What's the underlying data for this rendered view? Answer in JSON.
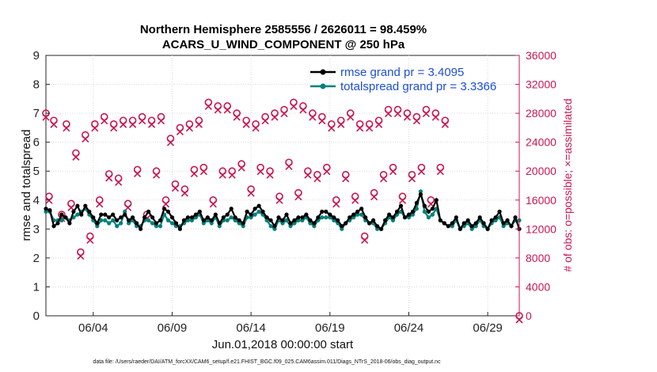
{
  "chart_data": {
    "type": "line",
    "title_line1": "Northern Hemisphere 2585556 / 2626011 = 98.459%",
    "title_line2": "ACARS_U_WIND_COMPONENT @ 250 hPa",
    "xlabel": "Jun.01,2018 00:00:00 start",
    "ylabel_left": "rmse and totalspread",
    "ylabel_right": "# of obs: o=possible; ×=assimilated",
    "xlim": [
      1,
      31
    ],
    "ylim_left": [
      0,
      9
    ],
    "ylim_right": [
      0,
      36000
    ],
    "x_ticks": [
      {
        "x": 4,
        "label": "06/04"
      },
      {
        "x": 9,
        "label": "06/09"
      },
      {
        "x": 14,
        "label": "06/14"
      },
      {
        "x": 19,
        "label": "06/19"
      },
      {
        "x": 24,
        "label": "06/24"
      },
      {
        "x": 29,
        "label": "06/29"
      }
    ],
    "y_ticks_left": [
      "0",
      "1",
      "2",
      "3",
      "4",
      "5",
      "6",
      "7",
      "8",
      "9"
    ],
    "y_ticks_right": [
      "0",
      "4000",
      "8000",
      "12000",
      "16000",
      "20000",
      "24000",
      "28000",
      "32000",
      "36000"
    ],
    "legend": {
      "rmse_label": "rmse grand pr = 3.4095",
      "spread_label": "totalspread grand pr = 3.3366"
    },
    "colors": {
      "rmse": "#000000",
      "spread": "#00807a",
      "obs": "#c8174f",
      "legend_text": "#1d4fd6"
    },
    "series": [
      {
        "name": "rmse",
        "values": [
          3.7,
          3.65,
          3.1,
          3.2,
          3.5,
          3.4,
          3.2,
          3.6,
          3.8,
          3.5,
          3.8,
          3.6,
          3.4,
          3.2,
          3.5,
          3.5,
          3.4,
          3.5,
          3.3,
          3.4,
          3.5,
          3.3,
          3.4,
          3.2,
          3.0,
          3.4,
          3.6,
          3.4,
          3.2,
          3.3,
          3.7,
          3.6,
          3.4,
          3.2,
          3.0,
          3.3,
          3.4,
          3.4,
          3.5,
          3.6,
          3.3,
          3.4,
          3.3,
          3.5,
          3.2,
          3.4,
          3.5,
          3.7,
          3.4,
          3.3,
          3.2,
          3.6,
          3.5,
          3.7,
          3.8,
          3.6,
          3.4,
          3.3,
          3.1,
          3.4,
          3.3,
          3.5,
          3.2,
          3.3,
          3.4,
          3.4,
          3.5,
          3.3,
          3.2,
          3.4,
          3.6,
          3.6,
          3.5,
          3.4,
          3.3,
          3.1,
          3.2,
          3.4,
          3.5,
          3.6,
          3.7,
          3.4,
          3.2,
          3.3,
          3.1,
          3.0,
          3.3,
          3.5,
          3.4,
          3.6,
          3.8,
          3.4,
          3.5,
          3.6,
          3.9,
          4.2,
          3.8,
          3.6,
          3.7,
          4.0,
          3.3,
          3.2,
          3.1,
          3.2,
          3.4,
          3.0,
          3.2,
          3.3,
          3.1,
          3.2,
          3.4,
          3.2,
          3.0,
          3.3,
          3.4,
          3.6,
          3.2,
          3.3,
          3.1,
          3.4,
          3.0
        ]
      },
      {
        "name": "totalspread",
        "values": [
          3.6,
          3.6,
          3.3,
          3.3,
          3.3,
          3.4,
          3.3,
          3.4,
          3.5,
          3.6,
          3.7,
          3.5,
          3.3,
          3.1,
          3.3,
          3.3,
          3.2,
          3.3,
          3.1,
          3.2,
          3.6,
          3.2,
          3.3,
          3.1,
          3.1,
          3.3,
          3.3,
          3.2,
          3.1,
          3.1,
          3.5,
          3.3,
          3.2,
          3.1,
          3.1,
          3.2,
          3.3,
          3.3,
          3.4,
          3.5,
          3.2,
          3.3,
          3.2,
          3.4,
          3.1,
          3.3,
          3.3,
          3.4,
          3.3,
          3.2,
          3.1,
          3.4,
          3.4,
          3.5,
          3.6,
          3.5,
          3.3,
          3.1,
          3.0,
          3.3,
          3.2,
          3.3,
          3.1,
          3.2,
          3.3,
          3.3,
          3.4,
          3.2,
          3.1,
          3.3,
          3.4,
          3.4,
          3.4,
          3.3,
          3.2,
          3.0,
          3.2,
          3.3,
          3.4,
          3.5,
          3.5,
          3.3,
          3.2,
          3.2,
          3.0,
          3.0,
          3.2,
          3.4,
          3.3,
          3.5,
          3.6,
          3.4,
          3.4,
          3.5,
          3.7,
          4.3,
          3.6,
          3.4,
          3.5,
          3.7,
          3.3,
          3.2,
          3.1,
          3.1,
          3.3,
          3.0,
          3.1,
          3.2,
          3.0,
          3.1,
          3.3,
          3.1,
          3.0,
          3.2,
          3.3,
          3.4,
          3.1,
          3.2,
          3.1,
          3.3,
          3.3
        ]
      },
      {
        "name": "obs_possible",
        "values": [
          28000,
          16500,
          27000,
          14000,
          26500,
          15500,
          22500,
          8800,
          25000,
          11000,
          26500,
          16000,
          27500,
          19600,
          26500,
          19000,
          27000,
          15500,
          27000,
          20200,
          27500,
          14000,
          27000,
          20000,
          27500,
          16000,
          24500,
          18200,
          26000,
          17500,
          26500,
          20200,
          27000,
          20500,
          29500,
          16000,
          29000,
          20000,
          29000,
          20000,
          28000,
          21000,
          27000,
          17500,
          26500,
          20500,
          27500,
          20000,
          28000,
          16500,
          28500,
          21200,
          29500,
          17000,
          29000,
          20000,
          28000,
          19500,
          27500,
          20500,
          26500,
          16000,
          27000,
          19500,
          28000,
          16500,
          26500,
          11000,
          26500,
          17000,
          27000,
          19500,
          28500,
          20500,
          28500,
          16500,
          28000,
          19500,
          27500,
          20500,
          28500,
          16000,
          28000,
          20500,
          27000,
          0
        ],
        "x": [
          1.0,
          1.2,
          1.5,
          2.0,
          2.3,
          2.6,
          2.9,
          3.2,
          3.5,
          3.8,
          4.1,
          4.4,
          4.7,
          5.0,
          5.3,
          5.6,
          5.9,
          6.2,
          6.5,
          6.8,
          7.1,
          7.4,
          7.7,
          8.0,
          8.3,
          8.6,
          8.9,
          9.2,
          9.5,
          9.8,
          10.1,
          10.4,
          10.7,
          11.0,
          11.3,
          11.6,
          11.9,
          12.2,
          12.5,
          12.8,
          13.1,
          13.4,
          13.7,
          14.0,
          14.3,
          14.6,
          14.9,
          15.2,
          15.5,
          15.8,
          16.1,
          16.4,
          16.7,
          17.0,
          17.3,
          17.6,
          17.9,
          18.2,
          18.5,
          18.8,
          19.1,
          19.4,
          19.7,
          20.0,
          20.3,
          20.6,
          20.9,
          21.2,
          21.5,
          21.8,
          22.1,
          22.4,
          22.7,
          23.0,
          23.3,
          23.6,
          23.9,
          24.2,
          24.5,
          24.8,
          25.1,
          25.4,
          25.7,
          26.0,
          26.3,
          31.0
        ]
      }
    ]
  },
  "footer": {
    "data_file": "data file: /Users/raeder/DAI/ATM_forcXX/CAM6_setup/f.e21.FHIST_BGC.f09_025.CAM6assim.011/Diags_NTrS_2018-06/obs_diag_output.nc"
  }
}
